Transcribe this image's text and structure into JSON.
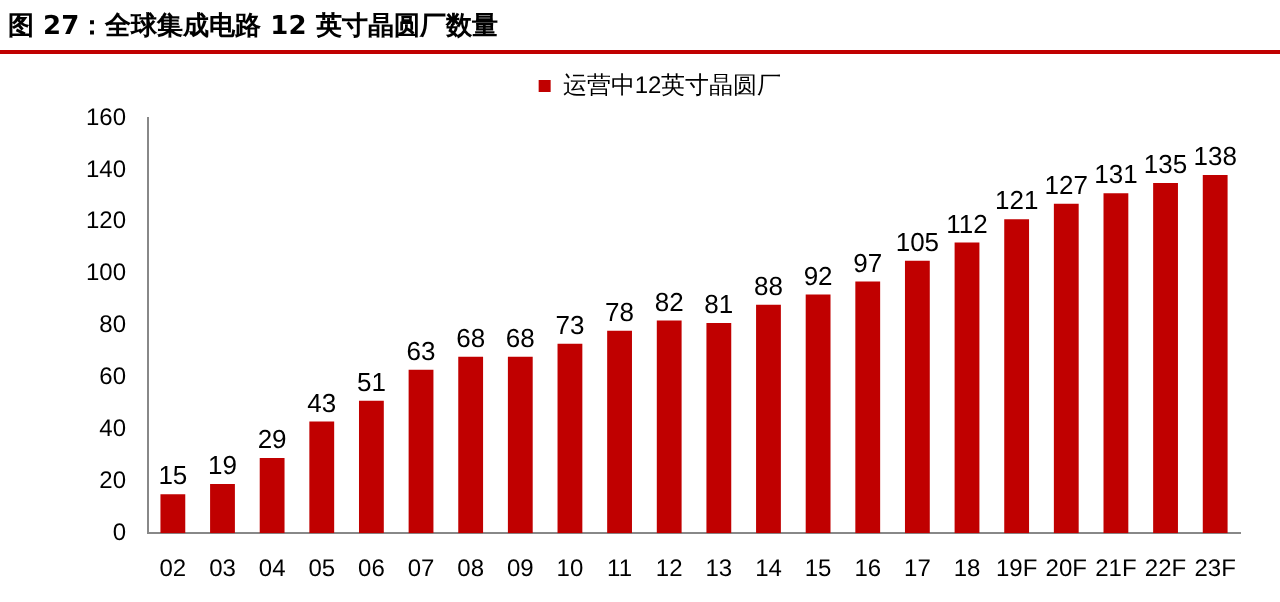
{
  "chart_data": {
    "type": "bar",
    "title": "图 27：全球集成电路 12 英寸晶圆厂数量",
    "categories": [
      "02",
      "03",
      "04",
      "05",
      "06",
      "07",
      "08",
      "09",
      "10",
      "11",
      "12",
      "13",
      "14",
      "15",
      "16",
      "17",
      "18",
      "19F",
      "20F",
      "21F",
      "22F",
      "23F"
    ],
    "series": [
      {
        "name": "运营中12英寸晶圆厂",
        "color": "#c00000",
        "values": [
          15,
          19,
          29,
          43,
          51,
          63,
          68,
          68,
          73,
          78,
          82,
          81,
          88,
          92,
          97,
          105,
          112,
          121,
          127,
          131,
          135,
          138
        ]
      }
    ],
    "ylim": [
      0,
      160
    ],
    "yticks": [
      0,
      20,
      40,
      60,
      80,
      100,
      120,
      140,
      160
    ],
    "grid": false,
    "legend": "top",
    "data_labels": true
  }
}
